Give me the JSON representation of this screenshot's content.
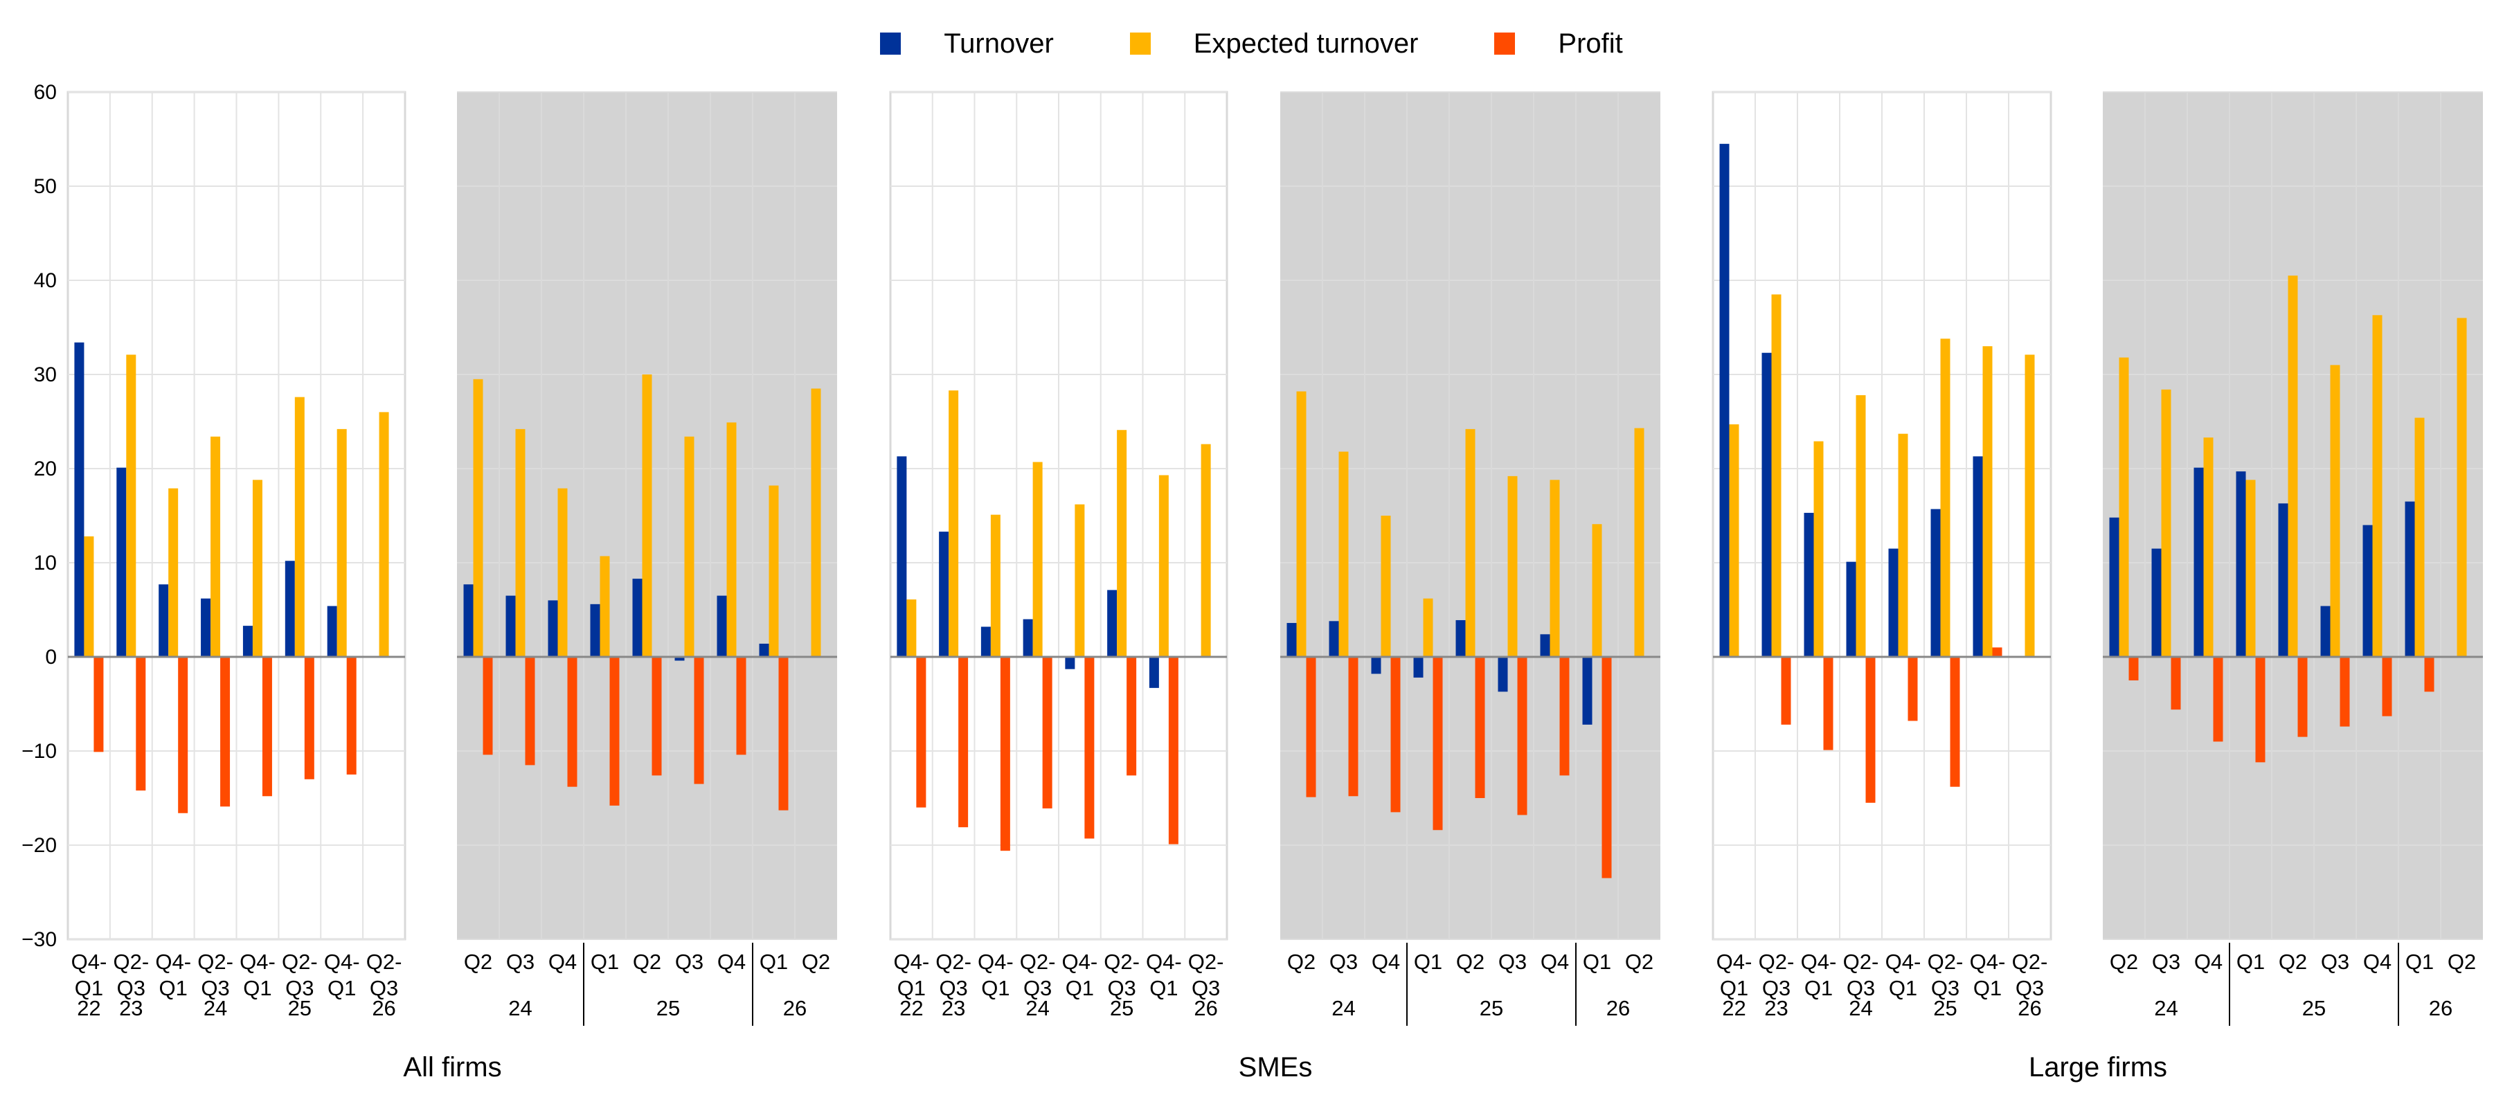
{
  "legend": [
    {
      "name": "Turnover",
      "color": "#003299"
    },
    {
      "name": "Expected turnover",
      "color": "#FFB400"
    },
    {
      "name": "Profit",
      "color": "#FF4B00"
    }
  ],
  "chart_data": {
    "type": "bar",
    "title": "",
    "ylabel": "",
    "ylim": [
      -30,
      60
    ],
    "yticks": [
      60,
      50,
      40,
      30,
      20,
      10,
      0,
      -10,
      -20,
      -30
    ],
    "grid": true,
    "legend_position": "top-center",
    "series_names": [
      "Turnover",
      "Expected turnover",
      "Profit"
    ],
    "groups": [
      {
        "title": "All firms",
        "panels": [
          {
            "shaded": false,
            "categories": [
              {
                "top": "Q4-",
                "bottom": "Q1",
                "year": "22"
              },
              {
                "top": "Q2-",
                "bottom": "Q3",
                "year": "23"
              },
              {
                "top": "Q4-",
                "bottom": "Q1",
                "year": ""
              },
              {
                "top": "Q2-",
                "bottom": "Q3",
                "year": "24"
              },
              {
                "top": "Q4-",
                "bottom": "Q1",
                "year": ""
              },
              {
                "top": "Q2-",
                "bottom": "Q3",
                "year": "25"
              },
              {
                "top": "Q4-",
                "bottom": "Q1",
                "year": ""
              },
              {
                "top": "Q2-",
                "bottom": "Q3",
                "year": "26"
              }
            ],
            "series": [
              {
                "name": "Turnover",
                "values": [
                  33.4,
                  20.1,
                  7.7,
                  6.2,
                  3.3,
                  10.2,
                  5.4,
                  null
                ]
              },
              {
                "name": "Expected turnover",
                "values": [
                  12.8,
                  32.1,
                  17.9,
                  23.4,
                  18.8,
                  27.6,
                  24.2,
                  26.0
                ]
              },
              {
                "name": "Profit",
                "values": [
                  -10.1,
                  -14.2,
                  -16.6,
                  -15.9,
                  -14.8,
                  -13.0,
                  -12.5,
                  null
                ]
              }
            ]
          },
          {
            "shaded": true,
            "categories": [
              "Q2",
              "Q3",
              "Q4",
              "Q1",
              "Q2",
              "Q3",
              "Q4",
              "Q1",
              "Q2"
            ],
            "years": [
              {
                "label": "24",
                "span": 3
              },
              {
                "label": "25",
                "span": 4
              },
              {
                "label": "26",
                "span": 2
              }
            ],
            "series": [
              {
                "name": "Turnover",
                "values": [
                  7.7,
                  6.5,
                  6.0,
                  5.6,
                  8.3,
                  -0.4,
                  6.5,
                  1.4,
                  null
                ]
              },
              {
                "name": "Expected turnover",
                "values": [
                  29.5,
                  24.2,
                  17.9,
                  10.7,
                  30.0,
                  23.4,
                  24.9,
                  18.2,
                  28.5
                ]
              },
              {
                "name": "Profit",
                "values": [
                  -10.4,
                  -11.5,
                  -13.8,
                  -15.8,
                  -12.6,
                  -13.5,
                  -10.4,
                  -16.3,
                  null
                ]
              }
            ]
          }
        ]
      },
      {
        "title": "SMEs",
        "panels": [
          {
            "shaded": false,
            "categories": [
              {
                "top": "Q4-",
                "bottom": "Q1",
                "year": "22"
              },
              {
                "top": "Q2-",
                "bottom": "Q3",
                "year": "23"
              },
              {
                "top": "Q4-",
                "bottom": "Q1",
                "year": ""
              },
              {
                "top": "Q2-",
                "bottom": "Q3",
                "year": "24"
              },
              {
                "top": "Q4-",
                "bottom": "Q1",
                "year": ""
              },
              {
                "top": "Q2-",
                "bottom": "Q3",
                "year": "25"
              },
              {
                "top": "Q4-",
                "bottom": "Q1",
                "year": ""
              },
              {
                "top": "Q2-",
                "bottom": "Q3",
                "year": "26"
              }
            ],
            "series": [
              {
                "name": "Turnover",
                "values": [
                  21.3,
                  13.3,
                  3.2,
                  4.0,
                  -1.3,
                  7.1,
                  -3.3,
                  null
                ]
              },
              {
                "name": "Expected turnover",
                "values": [
                  6.1,
                  28.3,
                  15.1,
                  20.7,
                  16.2,
                  24.1,
                  19.3,
                  22.6
                ]
              },
              {
                "name": "Profit",
                "values": [
                  -16.0,
                  -18.1,
                  -20.6,
                  -16.1,
                  -19.3,
                  -12.6,
                  -19.9,
                  null
                ]
              }
            ]
          },
          {
            "shaded": true,
            "categories": [
              "Q2",
              "Q3",
              "Q4",
              "Q1",
              "Q2",
              "Q3",
              "Q4",
              "Q1",
              "Q2"
            ],
            "years": [
              {
                "label": "24",
                "span": 3
              },
              {
                "label": "25",
                "span": 4
              },
              {
                "label": "26",
                "span": 2
              }
            ],
            "series": [
              {
                "name": "Turnover",
                "values": [
                  3.6,
                  3.8,
                  -1.8,
                  -2.2,
                  3.9,
                  -3.7,
                  2.4,
                  -7.2,
                  null
                ]
              },
              {
                "name": "Expected turnover",
                "values": [
                  28.2,
                  21.8,
                  15.0,
                  6.2,
                  24.2,
                  19.2,
                  18.8,
                  14.1,
                  24.3
                ]
              },
              {
                "name": "Profit",
                "values": [
                  -14.9,
                  -14.8,
                  -16.5,
                  -18.4,
                  -15.0,
                  -16.8,
                  -12.6,
                  -23.5,
                  null
                ]
              }
            ]
          }
        ]
      },
      {
        "title": "Large firms",
        "panels": [
          {
            "shaded": false,
            "categories": [
              {
                "top": "Q4-",
                "bottom": "Q1",
                "year": "22"
              },
              {
                "top": "Q2-",
                "bottom": "Q3",
                "year": "23"
              },
              {
                "top": "Q4-",
                "bottom": "Q1",
                "year": ""
              },
              {
                "top": "Q2-",
                "bottom": "Q3",
                "year": "24"
              },
              {
                "top": "Q4-",
                "bottom": "Q1",
                "year": ""
              },
              {
                "top": "Q2-",
                "bottom": "Q3",
                "year": "25"
              },
              {
                "top": "Q4-",
                "bottom": "Q1",
                "year": ""
              },
              {
                "top": "Q2-",
                "bottom": "Q3",
                "year": "26"
              }
            ],
            "series": [
              {
                "name": "Turnover",
                "values": [
                  54.5,
                  32.3,
                  15.3,
                  10.1,
                  11.5,
                  15.7,
                  21.3,
                  null
                ]
              },
              {
                "name": "Expected turnover",
                "values": [
                  24.7,
                  38.5,
                  22.9,
                  27.8,
                  23.7,
                  33.8,
                  33.0,
                  32.1
                ]
              },
              {
                "name": "Profit",
                "values": [
                  null,
                  -7.2,
                  -9.9,
                  -15.5,
                  -6.8,
                  -13.8,
                  1.0,
                  null
                ]
              }
            ]
          },
          {
            "shaded": true,
            "categories": [
              "Q2",
              "Q3",
              "Q4",
              "Q1",
              "Q2",
              "Q3",
              "Q4",
              "Q1",
              "Q2"
            ],
            "years": [
              {
                "label": "24",
                "span": 3
              },
              {
                "label": "25",
                "span": 4
              },
              {
                "label": "26",
                "span": 2
              }
            ],
            "series": [
              {
                "name": "Turnover",
                "values": [
                  14.8,
                  11.5,
                  20.1,
                  19.7,
                  16.3,
                  5.4,
                  14.0,
                  16.5,
                  null
                ]
              },
              {
                "name": "Expected turnover",
                "values": [
                  31.8,
                  28.4,
                  23.3,
                  18.8,
                  40.5,
                  31.0,
                  36.3,
                  25.4,
                  36.0
                ]
              },
              {
                "name": "Profit",
                "values": [
                  -2.5,
                  -5.6,
                  -9.0,
                  -11.2,
                  -8.5,
                  -7.4,
                  -6.3,
                  -3.7,
                  null
                ]
              }
            ]
          }
        ]
      }
    ]
  }
}
